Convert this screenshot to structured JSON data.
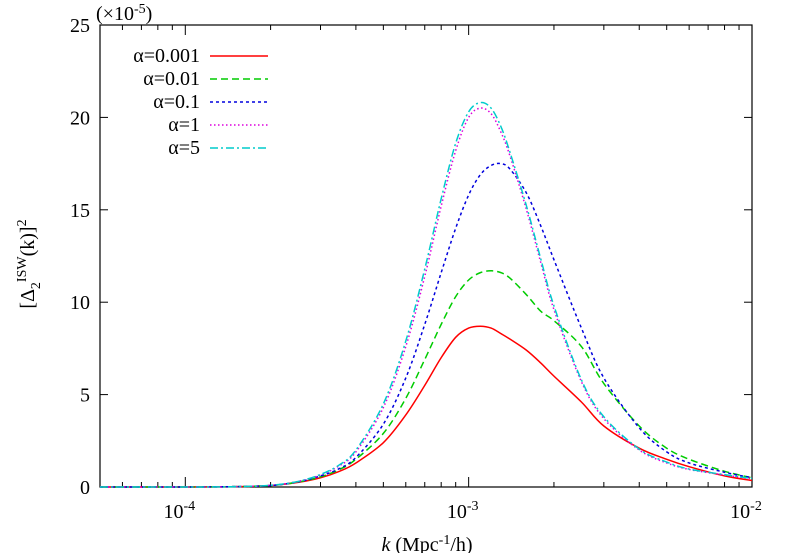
{
  "chart_data": {
    "type": "line",
    "title": "",
    "xlabel": {
      "italic": "k",
      "text": " (Mpc",
      "sup": "-1",
      "rest": "/h)"
    },
    "ylabel": {
      "pre": "[Δ",
      "sub": "2",
      "sup": "ISW",
      "mid": "(k)]",
      "sup2": "2"
    },
    "y_multiplier": "(×10",
    "y_multiplier_exp": "-5",
    "y_multiplier_close": ")",
    "xscale": "log",
    "xlim": [
      5e-05,
      0.01
    ],
    "ylim": [
      0,
      25
    ],
    "grid": false,
    "legend_position": "top-left",
    "x_ticks": [
      {
        "value": 0.0001,
        "base": "10",
        "exp": "-4"
      },
      {
        "value": 0.001,
        "base": "10",
        "exp": "-3"
      },
      {
        "value": 0.01,
        "base": "10",
        "exp": "-2"
      }
    ],
    "y_ticks": [
      0,
      5,
      10,
      15,
      20,
      25
    ],
    "series": [
      {
        "name": "α=0.001",
        "color": "#ff0000",
        "dash": "",
        "x": [
          5e-05,
          0.0001,
          0.00015,
          0.0002,
          0.00025,
          0.0003,
          0.00035,
          0.0004,
          0.0005,
          0.0006,
          0.0007,
          0.0008,
          0.0009,
          0.001,
          0.0011,
          0.0012,
          0.0013,
          0.0014,
          0.0016,
          0.0018,
          0.002,
          0.0025,
          0.003,
          0.004,
          0.005,
          0.006,
          0.008,
          0.01
        ],
        "y": [
          0,
          0,
          0.02,
          0.08,
          0.25,
          0.5,
          0.85,
          1.3,
          2.4,
          3.9,
          5.5,
          7.0,
          8.1,
          8.6,
          8.7,
          8.6,
          8.3,
          8.0,
          7.4,
          6.7,
          6.0,
          4.6,
          3.3,
          2.1,
          1.5,
          1.1,
          0.6,
          0.35
        ]
      },
      {
        "name": "α=0.01",
        "color": "#00cc00",
        "dash": "7,4",
        "x": [
          5e-05,
          0.0001,
          0.00015,
          0.0002,
          0.00025,
          0.0003,
          0.00035,
          0.0004,
          0.0005,
          0.0006,
          0.0007,
          0.0008,
          0.0009,
          0.001,
          0.0011,
          0.0012,
          0.0013,
          0.0014,
          0.0016,
          0.0018,
          0.002,
          0.0025,
          0.003,
          0.004,
          0.005,
          0.006,
          0.008,
          0.01
        ],
        "y": [
          0,
          0,
          0.02,
          0.08,
          0.27,
          0.55,
          0.95,
          1.5,
          2.9,
          4.8,
          6.9,
          8.8,
          10.3,
          11.2,
          11.6,
          11.7,
          11.6,
          11.3,
          10.4,
          9.5,
          9.0,
          7.6,
          5.6,
          3.3,
          2.1,
          1.5,
          0.85,
          0.5
        ]
      },
      {
        "name": "α=0.1",
        "color": "#0000dd",
        "dash": "3,3",
        "x": [
          5e-05,
          0.0001,
          0.00015,
          0.0002,
          0.00025,
          0.0003,
          0.00035,
          0.0004,
          0.0005,
          0.0006,
          0.0007,
          0.0008,
          0.0009,
          0.001,
          0.0011,
          0.0012,
          0.0013,
          0.0014,
          0.0016,
          0.0018,
          0.002,
          0.0025,
          0.003,
          0.004,
          0.005,
          0.006,
          0.008,
          0.01
        ],
        "y": [
          0,
          0,
          0.02,
          0.08,
          0.28,
          0.6,
          1.0,
          1.6,
          3.4,
          5.9,
          8.8,
          11.6,
          14.0,
          15.8,
          16.9,
          17.4,
          17.5,
          17.2,
          15.9,
          14.1,
          12.3,
          8.6,
          5.9,
          3.2,
          1.9,
          1.3,
          0.8,
          0.5
        ]
      },
      {
        "name": "α=1",
        "color": "#dd00dd",
        "dash": "1.5,2.5",
        "x": [
          5e-05,
          0.0001,
          0.00015,
          0.0002,
          0.00025,
          0.0003,
          0.00035,
          0.0004,
          0.0005,
          0.0006,
          0.0007,
          0.0008,
          0.0009,
          0.001,
          0.0011,
          0.0012,
          0.0013,
          0.0014,
          0.0016,
          0.0018,
          0.002,
          0.0025,
          0.003,
          0.004,
          0.005,
          0.006,
          0.008,
          0.01
        ],
        "y": [
          0,
          0,
          0.02,
          0.09,
          0.3,
          0.65,
          1.15,
          1.9,
          4.3,
          7.6,
          11.4,
          15.2,
          18.2,
          20.0,
          20.5,
          20.2,
          19.2,
          17.9,
          15.0,
          12.1,
          9.6,
          5.7,
          3.7,
          2.0,
          1.3,
          0.95,
          0.65,
          0.45
        ]
      },
      {
        "name": "α=5",
        "color": "#00cccc",
        "dash": "8,3,2,3",
        "x": [
          5e-05,
          0.0001,
          0.00015,
          0.0002,
          0.00025,
          0.0003,
          0.00035,
          0.0004,
          0.0005,
          0.0006,
          0.0007,
          0.0008,
          0.0009,
          0.001,
          0.0011,
          0.0012,
          0.0013,
          0.0014,
          0.0016,
          0.0018,
          0.002,
          0.0025,
          0.003,
          0.004,
          0.005,
          0.006,
          0.008,
          0.01
        ],
        "y": [
          0,
          0,
          0.02,
          0.09,
          0.3,
          0.68,
          1.2,
          2.0,
          4.5,
          7.9,
          11.8,
          15.6,
          18.6,
          20.3,
          20.8,
          20.5,
          19.5,
          18.1,
          15.2,
          12.3,
          9.8,
          5.8,
          3.8,
          2.05,
          1.35,
          0.97,
          0.67,
          0.46
        ]
      }
    ]
  }
}
